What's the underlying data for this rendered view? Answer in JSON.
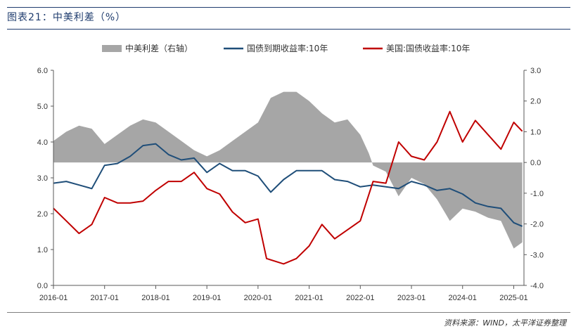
{
  "header": {
    "title": "图表21：中美利差（%）"
  },
  "footer": {
    "source": "资料来源：WIND，太平洋证券整理"
  },
  "colors": {
    "spread": "#a6a6a6",
    "china": "#1f4e79",
    "us": "#c00000",
    "rule": "#1f3c6e"
  },
  "chart_data": {
    "type": "line",
    "legend_position": "top",
    "grid": false,
    "x_ticks": [
      "2016-01",
      "2017-01",
      "2018-01",
      "2019-01",
      "2020-01",
      "2021-01",
      "2022-01",
      "2023-01",
      "2024-01",
      "2025-01"
    ],
    "y_left": {
      "ticks": [
        "0.0",
        "1.0",
        "2.0",
        "3.0",
        "4.0",
        "5.0",
        "6.0"
      ],
      "range": [
        0,
        6
      ]
    },
    "y_right": {
      "ticks": [
        "-4.0",
        "-3.0",
        "-2.0",
        "-1.0",
        "0.0",
        "1.0",
        "2.0",
        "3.0"
      ],
      "range": [
        -4,
        3
      ]
    },
    "series": [
      {
        "name": "中美利差（右轴）",
        "axis": "right",
        "style": "area",
        "x": [
          "2016-01",
          "2016-04",
          "2016-07",
          "2016-10",
          "2017-01",
          "2017-04",
          "2017-07",
          "2017-10",
          "2018-01",
          "2018-04",
          "2018-07",
          "2018-10",
          "2019-01",
          "2019-04",
          "2019-07",
          "2019-10",
          "2020-01",
          "2020-04",
          "2020-07",
          "2020-10",
          "2021-01",
          "2021-04",
          "2021-07",
          "2021-10",
          "2022-01",
          "2022-03",
          "2022-04",
          "2022-07",
          "2022-10",
          "2023-01",
          "2023-04",
          "2023-07",
          "2023-10",
          "2024-01",
          "2024-04",
          "2024-07",
          "2024-10",
          "2025-01",
          "2025-03"
        ],
        "values": [
          0.7,
          1.0,
          1.2,
          1.1,
          0.6,
          0.9,
          1.2,
          1.4,
          1.3,
          1.0,
          0.7,
          0.4,
          0.2,
          0.4,
          0.7,
          1.0,
          1.3,
          2.1,
          2.3,
          2.3,
          2.0,
          1.6,
          1.3,
          1.4,
          0.9,
          0.3,
          -0.1,
          -0.3,
          -1.1,
          -0.5,
          -0.7,
          -1.2,
          -1.9,
          -1.5,
          -1.6,
          -1.8,
          -1.9,
          -2.8,
          -2.6
        ]
      },
      {
        "name": "国债到期收益率:10年",
        "axis": "left",
        "style": "line",
        "x": [
          "2016-01",
          "2016-04",
          "2016-07",
          "2016-10",
          "2017-01",
          "2017-04",
          "2017-07",
          "2017-10",
          "2018-01",
          "2018-04",
          "2018-07",
          "2018-10",
          "2019-01",
          "2019-04",
          "2019-07",
          "2019-10",
          "2020-01",
          "2020-04",
          "2020-07",
          "2020-10",
          "2021-01",
          "2021-04",
          "2021-07",
          "2021-10",
          "2022-01",
          "2022-04",
          "2022-07",
          "2022-10",
          "2023-01",
          "2023-04",
          "2023-07",
          "2023-10",
          "2024-01",
          "2024-04",
          "2024-07",
          "2024-10",
          "2025-01",
          "2025-03"
        ],
        "values": [
          2.85,
          2.9,
          2.8,
          2.7,
          3.35,
          3.4,
          3.6,
          3.9,
          3.95,
          3.65,
          3.5,
          3.55,
          3.15,
          3.4,
          3.2,
          3.2,
          3.05,
          2.6,
          2.95,
          3.2,
          3.2,
          3.2,
          2.95,
          2.9,
          2.75,
          2.8,
          2.75,
          2.7,
          2.9,
          2.8,
          2.65,
          2.7,
          2.55,
          2.3,
          2.2,
          2.15,
          1.75,
          1.65
        ]
      },
      {
        "name": "美国:国债收益率:10年",
        "axis": "left",
        "style": "line",
        "x": [
          "2016-01",
          "2016-04",
          "2016-07",
          "2016-10",
          "2017-01",
          "2017-04",
          "2017-07",
          "2017-10",
          "2018-01",
          "2018-04",
          "2018-07",
          "2018-10",
          "2019-01",
          "2019-04",
          "2019-07",
          "2019-10",
          "2020-01",
          "2020-03",
          "2020-07",
          "2020-10",
          "2021-01",
          "2021-04",
          "2021-07",
          "2021-10",
          "2022-01",
          "2022-04",
          "2022-07",
          "2022-10",
          "2023-01",
          "2023-04",
          "2023-07",
          "2023-10",
          "2024-01",
          "2024-04",
          "2024-07",
          "2024-10",
          "2025-01",
          "2025-03"
        ],
        "values": [
          2.15,
          1.8,
          1.45,
          1.7,
          2.45,
          2.3,
          2.3,
          2.35,
          2.65,
          2.9,
          2.9,
          3.15,
          2.7,
          2.55,
          2.05,
          1.75,
          1.85,
          0.75,
          0.6,
          0.75,
          1.1,
          1.7,
          1.3,
          1.55,
          1.8,
          2.9,
          2.85,
          4.0,
          3.6,
          3.5,
          4.0,
          4.85,
          4.0,
          4.6,
          4.2,
          3.8,
          4.55,
          4.3
        ]
      }
    ]
  }
}
